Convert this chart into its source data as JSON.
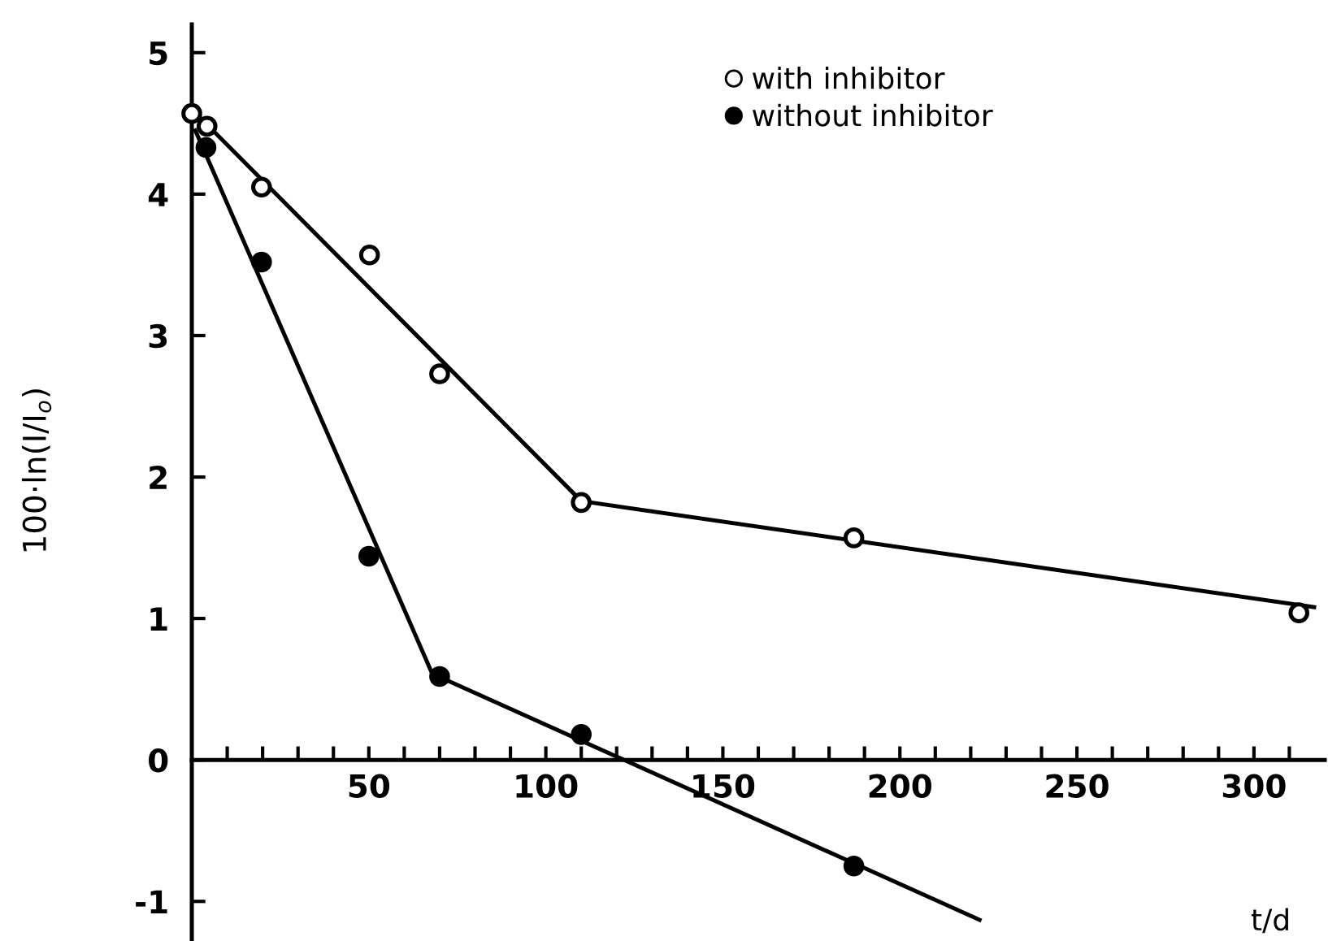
{
  "chart_data": {
    "type": "scatter",
    "xlabel": "t/d",
    "ylabel": "100·ln(I/I$_{o}$)",
    "xlim": [
      0,
      320
    ],
    "ylim": [
      -1.28,
      5.2
    ],
    "xticks": [
      {
        "value": 10,
        "label": null
      },
      {
        "value": 20,
        "label": null
      },
      {
        "value": 30,
        "label": null
      },
      {
        "value": 40,
        "label": null
      },
      50,
      {
        "value": 60,
        "label": null
      },
      {
        "value": 70,
        "label": null
      },
      {
        "value": 80,
        "label": null
      },
      {
        "value": 90,
        "label": null
      },
      100,
      {
        "value": 110,
        "label": null
      },
      {
        "value": 120,
        "label": null
      },
      {
        "value": 130,
        "label": null
      },
      {
        "value": 140,
        "label": null
      },
      150,
      {
        "value": 160,
        "label": null
      },
      {
        "value": 170,
        "label": null
      },
      {
        "value": 180,
        "label": null
      },
      {
        "value": 190,
        "label": null
      },
      200,
      {
        "value": 210,
        "label": null
      },
      {
        "value": 220,
        "label": null
      },
      {
        "value": 230,
        "label": null
      },
      {
        "value": 240,
        "label": null
      },
      250,
      {
        "value": 260,
        "label": null
      },
      {
        "value": 270,
        "label": null
      },
      {
        "value": 280,
        "label": null
      },
      {
        "value": 290,
        "label": null
      },
      300,
      {
        "value": 310,
        "label": null
      }
    ],
    "yticks": [
      -1,
      0,
      1,
      2,
      3,
      4,
      5
    ],
    "grid": false,
    "legend": "top right",
    "marker": "circle",
    "series": [
      {
        "name": "with inhibitor",
        "color": "#ffffff",
        "x": [
          0,
          4.3,
          19.7,
          50.2,
          70,
          110,
          187,
          312.7
        ],
        "values": [
          4.57,
          4.48,
          4.05,
          3.57,
          2.73,
          1.82,
          1.57,
          1.04
        ]
      },
      {
        "name": "without inhibitor",
        "color": "#000000",
        "x": [
          4,
          19.7,
          50,
          70,
          110,
          187
        ],
        "values": [
          4.33,
          3.52,
          1.44,
          0.59,
          0.18,
          -0.75
        ]
      },
      {
        "type": "line",
        "color": "#000000",
        "marker": "none",
        "x": [
          0,
          110,
          317
        ],
        "values": [
          4.6,
          1.83,
          1.08
        ]
      },
      {
        "type": "line",
        "color": "#000000",
        "marker": "none",
        "x": [
          1,
          67.9,
          222.5
        ],
        "values": [
          4.45,
          0.61,
          -1.13
        ]
      }
    ]
  }
}
